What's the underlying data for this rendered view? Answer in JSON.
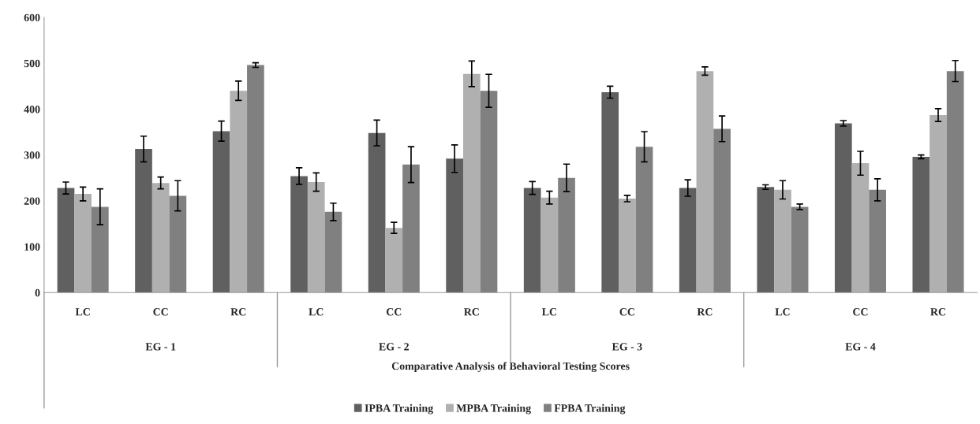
{
  "chart_data": {
    "type": "bar",
    "categories": [
      "LC",
      "CC",
      "RC",
      "LC",
      "CC",
      "RC",
      "LC",
      "CC",
      "RC",
      "LC",
      "CC",
      "RC"
    ],
    "xlabel": "Comparative Analysis of Behavioral Testing Scores",
    "annotations": [
      "EG - 1",
      "EG - 2",
      "EG - 3",
      "EG - 4"
    ],
    "series": [
      {
        "name": "IPBA Training",
        "color": "#606060",
        "values": [
          228,
          313,
          352,
          254,
          348,
          292,
          228,
          437,
          228,
          230,
          369,
          296
        ],
        "errors": [
          13,
          28,
          22,
          18,
          28,
          30,
          14,
          13,
          18,
          5,
          6,
          4
        ]
      },
      {
        "name": "MPBA Training",
        "color": "#b0b0b0",
        "values": [
          215,
          239,
          440,
          241,
          141,
          477,
          207,
          205,
          483,
          224,
          282,
          387
        ],
        "errors": [
          15,
          13,
          21,
          20,
          12,
          28,
          14,
          7,
          9,
          20,
          26,
          14
        ]
      },
      {
        "name": "FPBA Training",
        "color": "#808080",
        "values": [
          187,
          211,
          496,
          176,
          279,
          440,
          250,
          318,
          357,
          187,
          224,
          483
        ],
        "errors": [
          39,
          33,
          5,
          19,
          39,
          36,
          30,
          33,
          28,
          6,
          24,
          23
        ]
      }
    ],
    "ylim": [
      0,
      600
    ],
    "yticks": [
      0,
      100,
      200,
      300,
      400,
      500,
      600
    ],
    "grid": false,
    "legend": "bottom"
  }
}
